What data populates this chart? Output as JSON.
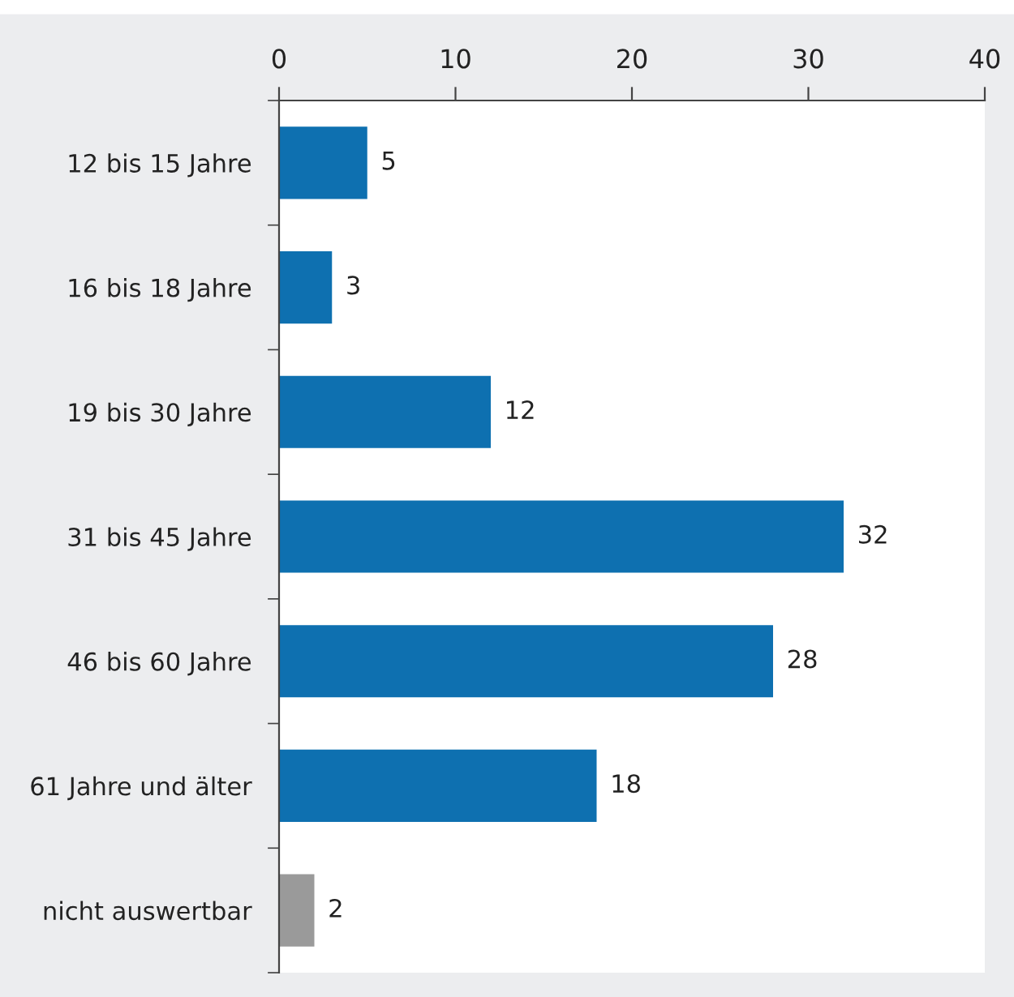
{
  "chart_data": {
    "type": "bar",
    "orientation": "horizontal",
    "categories": [
      "12 bis 15 Jahre",
      "16 bis 18 Jahre",
      "19 bis 30 Jahre",
      "31 bis 45 Jahre",
      "46 bis 60 Jahre",
      "61 Jahre und älter",
      "nicht auswertbar"
    ],
    "values": [
      5,
      3,
      12,
      32,
      28,
      18,
      2
    ],
    "colors": [
      "#0e70b0",
      "#0e70b0",
      "#0e70b0",
      "#0e70b0",
      "#0e70b0",
      "#0e70b0",
      "#9a9a9a"
    ],
    "xlim": [
      0,
      40
    ],
    "xticks": [
      0,
      10,
      20,
      30,
      40
    ],
    "grid": false,
    "legend": false,
    "data_labels": true
  }
}
